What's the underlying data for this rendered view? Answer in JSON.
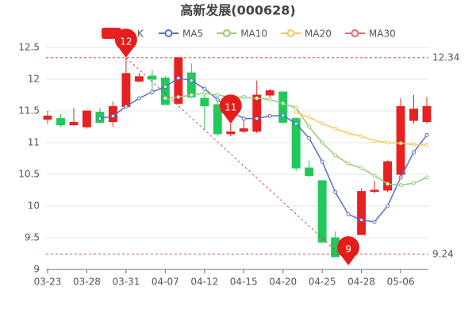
{
  "chart_data": {
    "type": "candlestick",
    "title": "高新发展(000628)",
    "categories": [
      "03-23",
      null,
      null,
      "03-28",
      null,
      null,
      "03-31",
      null,
      null,
      "04-07",
      null,
      null,
      "04-12",
      null,
      null,
      "04-15",
      null,
      null,
      "04-20",
      null,
      null,
      "04-25",
      null,
      null,
      "04-28",
      null,
      null,
      "05-06",
      null,
      null
    ],
    "candles": {
      "name": "K",
      "up_color": "#e82020",
      "down_color": "#21c95a",
      "open": [
        11.37,
        11.38,
        11.28,
        11.25,
        11.48,
        11.33,
        11.57,
        11.97,
        12.05,
        12.02,
        11.62,
        12.1,
        11.7,
        11.6,
        11.14,
        11.18,
        11.18,
        11.75,
        11.8,
        11.38,
        10.6,
        10.4,
        9.5,
        9.45,
        9.55,
        10.23,
        10.25,
        10.5,
        11.35,
        11.33
      ],
      "close": [
        11.42,
        11.28,
        11.32,
        11.5,
        11.32,
        11.57,
        12.09,
        12.04,
        12.0,
        11.6,
        12.34,
        11.72,
        11.58,
        11.14,
        11.17,
        11.22,
        11.75,
        11.82,
        11.32,
        10.6,
        10.48,
        9.43,
        9.2,
        9.3,
        10.23,
        10.25,
        10.7,
        11.57,
        11.53,
        11.57
      ],
      "high": [
        11.5,
        11.45,
        11.55,
        11.5,
        11.55,
        11.65,
        12.34,
        12.1,
        12.15,
        12.05,
        12.35,
        12.25,
        11.75,
        11.65,
        11.3,
        11.4,
        11.98,
        11.85,
        11.8,
        11.4,
        10.72,
        10.4,
        9.6,
        9.5,
        10.28,
        10.4,
        10.72,
        11.7,
        11.75,
        11.72
      ],
      "low": [
        11.3,
        11.25,
        11.27,
        11.22,
        11.3,
        11.25,
        11.55,
        11.95,
        11.75,
        11.6,
        11.6,
        11.7,
        11.2,
        11.1,
        11.1,
        11.15,
        11.15,
        11.7,
        11.3,
        10.55,
        10.45,
        9.42,
        9.25,
        9.24,
        9.55,
        10.2,
        10.22,
        10.45,
        11.3,
        11.3
      ]
    },
    "series": [
      {
        "name": "MA5",
        "color": "#5470c6",
        "values": [
          null,
          null,
          null,
          null,
          11.38,
          11.42,
          11.57,
          11.7,
          11.8,
          11.88,
          12.02,
          11.98,
          11.85,
          11.68,
          11.5,
          11.38,
          11.38,
          11.42,
          11.43,
          11.3,
          11.07,
          10.7,
          10.22,
          9.87,
          9.78,
          9.75,
          10.0,
          10.45,
          10.85,
          11.12
        ]
      },
      {
        "name": "MA10",
        "color": "#91cc75",
        "values": [
          null,
          null,
          null,
          null,
          null,
          null,
          null,
          null,
          null,
          11.7,
          11.72,
          11.75,
          11.78,
          11.75,
          11.72,
          11.72,
          11.7,
          11.68,
          11.62,
          11.55,
          11.25,
          11.0,
          10.8,
          10.67,
          10.6,
          10.48,
          10.35,
          10.33,
          10.36,
          10.45
        ]
      },
      {
        "name": "MA20",
        "color": "#fac858",
        "values": [
          null,
          null,
          null,
          null,
          null,
          null,
          null,
          null,
          null,
          null,
          null,
          null,
          null,
          null,
          null,
          null,
          null,
          null,
          null,
          11.48,
          11.4,
          11.3,
          11.22,
          11.15,
          11.1,
          11.03,
          11.0,
          10.99,
          10.97,
          10.96
        ]
      },
      {
        "name": "MA30",
        "color": "#ee6666",
        "values": [
          null,
          null,
          null,
          null,
          null,
          null,
          null,
          null,
          null,
          null,
          null,
          null,
          null,
          null,
          null,
          null,
          null,
          null,
          null,
          null,
          null,
          null,
          null,
          null,
          null,
          null,
          null,
          null,
          null,
          null
        ]
      }
    ],
    "mark_lines": [
      12.34,
      9.24
    ],
    "pins": [
      {
        "label": "12",
        "index": 6
      },
      {
        "label": "11",
        "index": 14
      },
      {
        "label": "9",
        "index": 23
      }
    ],
    "ylim": [
      9,
      12.5
    ],
    "yticks": [
      9,
      9.5,
      10,
      10.5,
      11,
      11.5,
      12,
      12.5
    ],
    "grid": true
  }
}
